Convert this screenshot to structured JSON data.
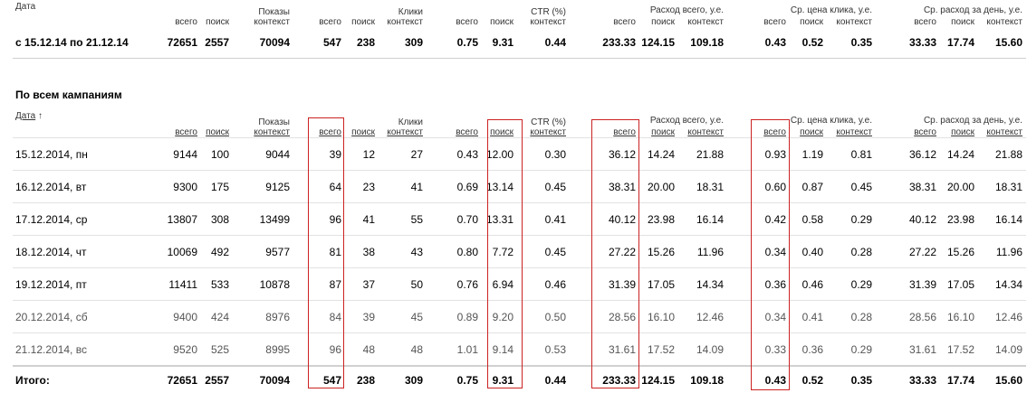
{
  "summary": {
    "header": {
      "label": "Дата",
      "shows": {
        "title_line1": "Показы",
        "all": "всего",
        "search": "поиск",
        "context": "контекст"
      },
      "clicks": {
        "title_line1": "Клики",
        "all": "всего",
        "search": "поиск",
        "context": "контекст"
      },
      "ctr": {
        "title": "CTR (%)",
        "all": "всего",
        "search": "поиск",
        "context": "контекст"
      },
      "cost": {
        "title": "Расход всего, у.е.",
        "all": "всего",
        "search": "поиск",
        "context": "контекст"
      },
      "cpc": {
        "title": "Ср. цена клика, у.е.",
        "all": "всего",
        "search": "поиск",
        "context": "контекст"
      },
      "daily": {
        "title": "Ср. расход за день, у.е.",
        "all": "всего",
        "search": "поиск",
        "context": "контекст"
      }
    },
    "row": [
      "с 15.12.14 по 21.12.14",
      "72651",
      "2557",
      "70094",
      "547",
      "238",
      "309",
      "0.75",
      "9.31",
      "0.44",
      "233.33",
      "124.15",
      "109.18",
      "0.43",
      "0.52",
      "0.35",
      "33.33",
      "17.74",
      "15.60"
    ]
  },
  "campaigns": {
    "title": "По всем кампаниям",
    "header": {
      "label": "Дата",
      "sort_arrow": "↑",
      "shows": {
        "title_line1": "Показы",
        "all": "всего",
        "search": "поиск",
        "context": "контекст"
      },
      "clicks": {
        "title_line1": "Клики",
        "all": "всего",
        "search": "поиск",
        "context": "контекст"
      },
      "ctr": {
        "title": "CTR (%)",
        "all": "всего",
        "search": "поиск",
        "context": "контекст"
      },
      "cost": {
        "title": "Расход всего, у.е.",
        "all": "всего",
        "search": "поиск",
        "context": "контекст"
      },
      "cpc": {
        "title": "Ср. цена клика, у.е.",
        "all": "всего",
        "search": "поиск",
        "context": "контекст"
      },
      "daily": {
        "title": "Ср. расход за день, у.е.",
        "all": "всего",
        "search": "поиск",
        "context": "контекст"
      }
    },
    "rows": [
      [
        "15.12.2014, пн",
        "9144",
        "100",
        "9044",
        "39",
        "12",
        "27",
        "0.43",
        "12.00",
        "0.30",
        "36.12",
        "14.24",
        "21.88",
        "0.93",
        "1.19",
        "0.81",
        "36.12",
        "14.24",
        "21.88"
      ],
      [
        "16.12.2014, вт",
        "9300",
        "175",
        "9125",
        "64",
        "23",
        "41",
        "0.69",
        "13.14",
        "0.45",
        "38.31",
        "20.00",
        "18.31",
        "0.60",
        "0.87",
        "0.45",
        "38.31",
        "20.00",
        "18.31"
      ],
      [
        "17.12.2014, ср",
        "13807",
        "308",
        "13499",
        "96",
        "41",
        "55",
        "0.70",
        "13.31",
        "0.41",
        "40.12",
        "23.98",
        "16.14",
        "0.42",
        "0.58",
        "0.29",
        "40.12",
        "23.98",
        "16.14"
      ],
      [
        "18.12.2014, чт",
        "10069",
        "492",
        "9577",
        "81",
        "38",
        "43",
        "0.80",
        "7.72",
        "0.45",
        "27.22",
        "15.26",
        "11.96",
        "0.34",
        "0.40",
        "0.28",
        "27.22",
        "15.26",
        "11.96"
      ],
      [
        "19.12.2014, пт",
        "11411",
        "533",
        "10878",
        "87",
        "37",
        "50",
        "0.76",
        "6.94",
        "0.46",
        "31.39",
        "17.05",
        "14.34",
        "0.36",
        "0.46",
        "0.29",
        "31.39",
        "17.05",
        "14.34"
      ],
      [
        "20.12.2014, сб",
        "9400",
        "424",
        "8976",
        "84",
        "39",
        "45",
        "0.89",
        "9.20",
        "0.50",
        "28.56",
        "16.10",
        "12.46",
        "0.34",
        "0.41",
        "0.28",
        "28.56",
        "16.10",
        "12.46"
      ],
      [
        "21.12.2014, вс",
        "9520",
        "525",
        "8995",
        "96",
        "48",
        "48",
        "1.01",
        "9.14",
        "0.53",
        "31.61",
        "17.52",
        "14.09",
        "0.33",
        "0.36",
        "0.29",
        "31.61",
        "17.52",
        "14.09"
      ]
    ],
    "weekend_rows": [
      5,
      6
    ],
    "total": [
      "Итого:",
      "72651",
      "2557",
      "70094",
      "547",
      "238",
      "309",
      "0.75",
      "9.31",
      "0.44",
      "233.33",
      "124.15",
      "109.18",
      "0.43",
      "0.52",
      "0.35",
      "33.33",
      "17.74",
      "15.60"
    ]
  },
  "colors": {
    "highlight": "#cc2222",
    "weekend_text": "#555555"
  }
}
